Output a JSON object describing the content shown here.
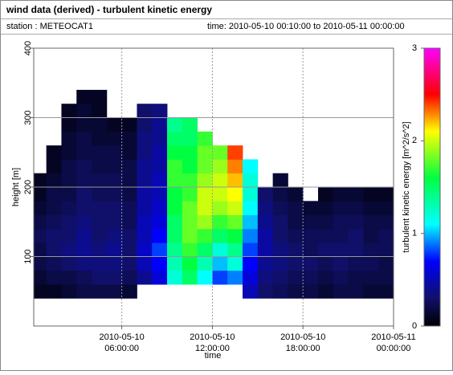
{
  "chart_data": {
    "type": "heatmap",
    "title": "wind data (derived) - turbulent kinetic energy",
    "station": "station : METEOCAT1",
    "time_range": "time: 2010-05-10 00:10:00 to 2010-05-11 00:00:00",
    "xlabel": "time",
    "ylabel": "height [m]",
    "colorbar_label": "turbulent kinetic energy [m^2/s^2]",
    "xlim": [
      "2010-05-10 00:10:00",
      "2010-05-11 00:00:00"
    ],
    "xticks": [
      "2010-05-10 06:00:00",
      "2010-05-10 12:00:00",
      "2010-05-10 18:00:00",
      "2010-05-11 00:00:00"
    ],
    "ylim": [
      0,
      400
    ],
    "yticks": [
      100,
      200,
      300,
      400
    ],
    "grid": true,
    "clim": [
      0,
      3
    ],
    "cticks": [
      0,
      1,
      2,
      3
    ],
    "colorscale": [
      [
        0,
        "#000000"
      ],
      [
        0.3,
        "#10106a"
      ],
      [
        0.7,
        "#0000ff"
      ],
      [
        1.1,
        "#00ffff"
      ],
      [
        1.6,
        "#00ff40"
      ],
      [
        2.1,
        "#ffff00"
      ],
      [
        2.5,
        "#ff0000"
      ],
      [
        3,
        "#ff00ff"
      ]
    ],
    "x_edges": [
      "2010-05-10 00:10:00",
      "2010-05-10 01:00:00",
      "2010-05-10 02:00:00",
      "2010-05-10 03:00:00",
      "2010-05-10 04:00:00",
      "2010-05-10 05:00:00",
      "2010-05-10 06:00:00",
      "2010-05-10 07:00:00",
      "2010-05-10 08:00:00",
      "2010-05-10 09:00:00",
      "2010-05-10 10:00:00",
      "2010-05-10 11:00:00",
      "2010-05-10 12:00:00",
      "2010-05-10 13:00:00",
      "2010-05-10 14:00:00",
      "2010-05-10 15:00:00",
      "2010-05-10 16:00:00",
      "2010-05-10 17:00:00",
      "2010-05-10 18:00:00",
      "2010-05-10 19:00:00",
      "2010-05-10 20:00:00",
      "2010-05-10 21:00:00",
      "2010-05-10 22:00:00",
      "2010-05-10 23:00:00",
      "2010-05-11 00:00:00"
    ],
    "y_edges": [
      40,
      60,
      80,
      100,
      120,
      140,
      160,
      180,
      200,
      220,
      240,
      260,
      280,
      300,
      320,
      340
    ],
    "values": [
      [
        0.1,
        0.15,
        0.2,
        0.2,
        0.25,
        0.2,
        0.15,
        0.1,
        0.1,
        null,
        null,
        null,
        null,
        null,
        null
      ],
      [
        0.1,
        0.2,
        0.25,
        0.3,
        0.3,
        0.25,
        0.2,
        0.2,
        0.15,
        0.1,
        0.1,
        null,
        null,
        null,
        null
      ],
      [
        0.15,
        0.2,
        0.3,
        0.35,
        0.3,
        0.3,
        0.25,
        0.2,
        0.2,
        0.2,
        0.15,
        0.15,
        0.1,
        0.1,
        null
      ],
      [
        0.2,
        0.25,
        0.35,
        0.4,
        0.4,
        0.35,
        0.3,
        0.3,
        0.25,
        0.25,
        0.2,
        0.2,
        0.15,
        0.15,
        0.1
      ],
      [
        0.2,
        0.3,
        0.35,
        0.35,
        0.3,
        0.3,
        0.3,
        0.25,
        0.25,
        0.2,
        0.2,
        0.15,
        0.15,
        0.1,
        0.1
      ],
      [
        0.2,
        0.3,
        0.35,
        0.4,
        0.35,
        0.3,
        0.3,
        0.25,
        0.25,
        0.2,
        0.2,
        0.15,
        0.1,
        null,
        null
      ],
      [
        0.15,
        0.25,
        0.3,
        0.3,
        0.3,
        0.25,
        0.25,
        0.2,
        0.2,
        0.2,
        0.15,
        0.15,
        0.1,
        null,
        null
      ],
      [
        null,
        0.4,
        0.5,
        0.55,
        0.5,
        0.5,
        0.45,
        0.45,
        0.4,
        0.4,
        0.35,
        0.35,
        0.3,
        0.3,
        null
      ],
      [
        null,
        0.6,
        0.7,
        0.8,
        0.7,
        0.6,
        0.55,
        0.5,
        0.5,
        0.45,
        0.45,
        0.4,
        0.4,
        0.35,
        null
      ],
      [
        null,
        1.2,
        1.3,
        1.4,
        1.5,
        1.5,
        1.6,
        1.6,
        1.7,
        1.7,
        1.6,
        1.5,
        1.4,
        null,
        null
      ],
      [
        null,
        1.5,
        1.6,
        1.7,
        1.8,
        1.8,
        1.8,
        1.7,
        1.7,
        1.6,
        1.6,
        1.5,
        1.5,
        null,
        null
      ],
      [
        null,
        1.1,
        1.3,
        1.5,
        1.7,
        1.9,
        2.0,
        2.0,
        1.9,
        1.8,
        1.8,
        1.7,
        null,
        null,
        null
      ],
      [
        null,
        0.8,
        1.0,
        1.2,
        1.5,
        1.7,
        1.9,
        2.0,
        2.0,
        1.9,
        1.8,
        null,
        null,
        null,
        null
      ],
      [
        null,
        0.9,
        1.2,
        1.4,
        1.6,
        1.8,
        2.0,
        2.1,
        2.2,
        2.3,
        2.4,
        null,
        null,
        null,
        null
      ],
      [
        0.5,
        0.6,
        0.7,
        0.8,
        0.9,
        1.0,
        1.1,
        1.2,
        1.2,
        1.1,
        null,
        null,
        null,
        null,
        null
      ],
      [
        0.3,
        0.35,
        0.4,
        0.45,
        0.45,
        0.4,
        0.35,
        0.3,
        null,
        null,
        null,
        null,
        null,
        null,
        null
      ],
      [
        0.25,
        0.3,
        0.35,
        0.35,
        0.3,
        0.3,
        0.25,
        0.2,
        0.15,
        null,
        null,
        null,
        null,
        null,
        null
      ],
      [
        0.2,
        0.25,
        0.3,
        0.3,
        0.25,
        0.2,
        0.2,
        0.15,
        null,
        null,
        null,
        null,
        null,
        null,
        null
      ],
      [
        0.2,
        0.25,
        0.3,
        0.25,
        0.25,
        0.2,
        0.15,
        null,
        null,
        null,
        null,
        null,
        null,
        null,
        null
      ],
      [
        0.15,
        0.2,
        0.25,
        0.3,
        0.25,
        0.2,
        0.15,
        0.1,
        null,
        null,
        null,
        null,
        null,
        null,
        null
      ],
      [
        0.2,
        0.25,
        0.3,
        0.3,
        0.25,
        0.25,
        0.2,
        0.15,
        null,
        null,
        null,
        null,
        null,
        null,
        null
      ],
      [
        0.2,
        0.2,
        0.25,
        0.3,
        0.3,
        0.25,
        0.2,
        0.15,
        null,
        null,
        null,
        null,
        null,
        null,
        null
      ],
      [
        0.15,
        0.2,
        0.25,
        0.25,
        0.2,
        0.2,
        0.15,
        0.1,
        null,
        null,
        null,
        null,
        null,
        null,
        null
      ],
      [
        0.15,
        0.2,
        0.2,
        0.25,
        0.25,
        0.2,
        0.15,
        0.1,
        null,
        null,
        null,
        null,
        null,
        null,
        null
      ]
    ]
  }
}
